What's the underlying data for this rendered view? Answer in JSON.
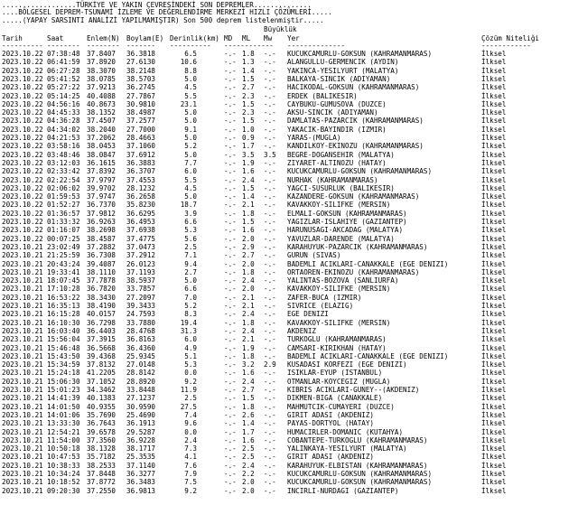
{
  "header": {
    "lines": [
      "..................TÜRKİYE VE YAKIN ÇEVRESİNDEKİ SON DEPREMLER..............",
      "....BÖLGESEL DEPREM-TSUNAMİ İZLEME VE DEĞERLENDİRME MERKEZİ HIZLI ÇÖZÜMLERİ.....",
      ".....(YAPAY SARSINTI ANALİZİ YAPILMAMIŞTIR) Son 500 deprem listelenmiştir....."
    ],
    "magnitude_label": "Büyüklük"
  },
  "table": {
    "columns": [
      "Tarih",
      "Saat",
      "Enlem(N)",
      "Boylam(E)",
      "Derinlik(km)",
      "MD",
      "ML",
      "Mw",
      "Yer",
      "Çözüm Niteliği"
    ],
    "separators": [
      "----------",
      "--------",
      "--------",
      "-------",
      "----------",
      "------------",
      "--------------",
      "------------"
    ],
    "rows": [
      [
        "2023.10.22",
        "07:38:48",
        "37.8407",
        "36.3818",
        "6.5",
        "-.-",
        "1.8",
        "-.-",
        "KUCUKCAMURLU-GOKSUN (KAHRAMANMARAS)",
        "İlksel"
      ],
      [
        "2023.10.22",
        "06:41:59",
        "37.8920",
        "27.6130",
        "10.6",
        "-.-",
        "1.3",
        "-.-",
        "ALANGULLU-GERMENCIK (AYDIN)",
        "İlksel"
      ],
      [
        "2023.10.22",
        "06:27:28",
        "38.3070",
        "38.2148",
        "8.8",
        "-.-",
        "1.4",
        "-.-",
        "YAKINCA-YESILYURT (MALATYA)",
        "İlksel"
      ],
      [
        "2023.10.22",
        "05:41:52",
        "38.0785",
        "38.5703",
        "5.0",
        "-.-",
        "1.5",
        "-.-",
        "BALKAYA-SINCIK (ADIYAMAN)",
        "İlksel"
      ],
      [
        "2023.10.22",
        "05:27:22",
        "37.9213",
        "36.2745",
        "4.5",
        "-.-",
        "2.7",
        "-.-",
        "HACIKODAL-GOKSUN (KAHRAMANMARAS)",
        "İlksel"
      ],
      [
        "2023.10.22",
        "05:14:25",
        "40.4088",
        "27.7867",
        "5.5",
        "-.-",
        "2.3",
        "-.-",
        "ERDEK (BALIKESIR)",
        "İlksel"
      ],
      [
        "2023.10.22",
        "04:56:16",
        "40.8673",
        "30.9810",
        "23.1",
        "-.-",
        "1.5",
        "-.-",
        "CAYBUKU-GUMUSOVA (DUZCE)",
        "İlksel"
      ],
      [
        "2023.10.22",
        "04:45:33",
        "38.1352",
        "38.4987",
        "5.0",
        "-.-",
        "2.3",
        "-.-",
        "AKSU-SINCIK (ADIYAMAN)",
        "İlksel"
      ],
      [
        "2023.10.22",
        "04:36:28",
        "37.4507",
        "37.2577",
        "5.0",
        "-.-",
        "1.5",
        "-.-",
        "DAMLATAS-PAZARCIK (KAHRAMANMARAS)",
        "İlksel"
      ],
      [
        "2023.10.22",
        "04:34:02",
        "38.2040",
        "27.7000",
        "9.1",
        "-.-",
        "1.0",
        "-.-",
        "YAKACIK-BAYINDIR (IZMIR)",
        "İlksel"
      ],
      [
        "2023.10.22",
        "04:21:53",
        "37.2062",
        "28.4663",
        "5.0",
        "-.-",
        "0.9",
        "-.-",
        "YARAS-(MUGLA)",
        "İlksel"
      ],
      [
        "2023.10.22",
        "03:58:16",
        "38.0453",
        "37.1060",
        "5.2",
        "-.-",
        "1.7",
        "-.-",
        "KANDILKOY-EKINOZU (KAHRAMANMARAS)",
        "İlksel"
      ],
      [
        "2023.10.22",
        "03:48:46",
        "38.0847",
        "37.6912",
        "5.0",
        "-.-",
        "3.5",
        "3.5",
        "BEGRE-DOGANSEHIR (MALATYA)",
        "İlksel"
      ],
      [
        "2023.10.22",
        "03:12:03",
        "36.1615",
        "36.3883",
        "7.7",
        "-.-",
        "1.9",
        "-.-",
        "ZIYARET-ALTINOZU (HATAY)",
        "İlksel"
      ],
      [
        "2023.10.22",
        "02:33:42",
        "37.8392",
        "36.3707",
        "6.0",
        "-.-",
        "1.6",
        "-.-",
        "KUCUKCAMURLU-GOKSUN (KAHRAMANMARAS)",
        "İlksel"
      ],
      [
        "2023.10.22",
        "02:22:54",
        "37.9797",
        "37.4553",
        "5.5",
        "-.-",
        "2.4",
        "-.-",
        "NURHAK (KAHRAMANMARAS)",
        "İlksel"
      ],
      [
        "2023.10.22",
        "02:06:02",
        "39.9702",
        "28.1232",
        "4.5",
        "-.-",
        "1.5",
        "-.-",
        "YAGCI-SUSURLUK (BALIKESIR)",
        "İlksel"
      ],
      [
        "2023.10.22",
        "01:59:53",
        "37.9747",
        "36.2658",
        "5.0",
        "-.-",
        "1.4",
        "-.-",
        "KAZANDERE-GOKSUN (KAHRAMANMARAS)",
        "İlksel"
      ],
      [
        "2023.10.22",
        "01:52:27",
        "36.7370",
        "35.8230",
        "18.7",
        "-.-",
        "2.1",
        "-.-",
        "KAVAKKOY-SILIFKE (MERSIN)",
        "İlksel"
      ],
      [
        "2023.10.22",
        "01:36:57",
        "37.9812",
        "36.6295",
        "3.9",
        "-.-",
        "1.8",
        "-.-",
        "ELMALI-GOKSUN (KAHRAMANMARAS)",
        "İlksel"
      ],
      [
        "2023.10.22",
        "01:33:32",
        "36.9263",
        "36.4953",
        "6.6",
        "-.-",
        "1.5",
        "-.-",
        "YAGIZLAR-ISLAHIYE (GAZIANTEP)",
        "İlksel"
      ],
      [
        "2023.10.22",
        "01:16:07",
        "38.2698",
        "37.6938",
        "5.3",
        "-.-",
        "1.6",
        "-.-",
        "HARUNUSAGI-AKCADAG (MALATYA)",
        "İlksel"
      ],
      [
        "2023.10.22",
        "00:07:25",
        "38.4587",
        "37.4775",
        "5.6",
        "-.-",
        "2.0",
        "-.-",
        "YAVUZLAR-DARENDE (MALATYA)",
        "İlksel"
      ],
      [
        "2023.10.21",
        "23:02:49",
        "37.2882",
        "37.0473",
        "2.5",
        "-.-",
        "2.9",
        "-.-",
        "KARAHUYUK-PAZARCIK (KAHRAMANMARAS)",
        "İlksel"
      ],
      [
        "2023.10.21",
        "21:25:59",
        "36.7308",
        "37.2912",
        "7.1",
        "-.-",
        "2.7",
        "-.-",
        "GURUN (SIVAS)",
        "İlksel"
      ],
      [
        "2023.10.21",
        "20:43:24",
        "39.4087",
        "26.0123",
        "9.4",
        "-.-",
        "2.0",
        "-.-",
        "BADEMLI ACIKLARI-CANAKKALE (EGE DENIZI)",
        "İlksel"
      ],
      [
        "2023.10.21",
        "19:33:41",
        "38.1110",
        "37.1193",
        "2.7",
        "-.-",
        "1.8",
        "-.-",
        "ORTAOREN-EKINOZU (KAHRAMANMARAS)",
        "İlksel"
      ],
      [
        "2023.10.21",
        "18:07:45",
        "37.7878",
        "38.5937",
        "5.0",
        "-.-",
        "2.4",
        "-.-",
        "YALINTAS-BOZOVA (SANLIURFA)",
        "İlksel"
      ],
      [
        "2023.10.21",
        "17:10:28",
        "36.7820",
        "33.7857",
        "6.6",
        "-.-",
        "2.0",
        "-.-",
        "KAVAKKOY-SILIFKE (MERSIN)",
        "İlksel"
      ],
      [
        "2023.10.21",
        "16:53:22",
        "38.3430",
        "27.2097",
        "7.0",
        "-.-",
        "2.1",
        "-.-",
        "ZAFER-BUCA (IZMIR)",
        "İlksel"
      ],
      [
        "2023.10.21",
        "16:35:13",
        "38.4190",
        "39.3433",
        "5.2",
        "-.-",
        "2.1",
        "-.-",
        "SIVRICE (ELAZIG)",
        "İlksel"
      ],
      [
        "2023.10.21",
        "16:15:28",
        "40.0157",
        "24.7593",
        "8.3",
        "-.-",
        "2.4",
        "-.-",
        "EGE DENIZI",
        "İlksel"
      ],
      [
        "2023.10.21",
        "16:10:30",
        "36.7298",
        "33.7880",
        "19.4",
        "-.-",
        "1.8",
        "-.-",
        "KAVAKKOY-SILIFKE (MERSIN)",
        "İlksel"
      ],
      [
        "2023.10.21",
        "16:03:40",
        "36.4403",
        "28.4768",
        "31.3",
        "-.-",
        "2.4",
        "-.-",
        "AKDENIZ",
        "İlksel"
      ],
      [
        "2023.10.21",
        "15:56:04",
        "37.3915",
        "36.8163",
        "6.0",
        "-.-",
        "2.1",
        "-.-",
        "TURKOGLU (KAHRAMANMARAS)",
        "İlksel"
      ],
      [
        "2023.10.21",
        "15:46:48",
        "36.5668",
        "36.4360",
        "4.9",
        "-.-",
        "1.9",
        "-.-",
        "CAMSARI-KIRIKHAN (HATAY)",
        "İlksel"
      ],
      [
        "2023.10.21",
        "15:43:50",
        "39.4368",
        "25.9345",
        "5.1",
        "-.-",
        "1.8",
        "-.-",
        "BADEMLI ACIKLARI-CANAKKALE (EGE DENIZI)",
        "İlksel"
      ],
      [
        "2023.10.21",
        "15:34:59",
        "37.8132",
        "27.0148",
        "5.3",
        "-.-",
        "3.2",
        "2.9",
        "KUSADASI KORFEZI (EGE DENIZI)",
        "İlksel"
      ],
      [
        "2023.10.21",
        "15:24:18",
        "41.2205",
        "28.8142",
        "0.0",
        "-.-",
        "1.6",
        "-.-",
        "ISIKLAR-EYUP (ISTANBUL)",
        "İlksel"
      ],
      [
        "2023.10.21",
        "15:06:30",
        "37.1052",
        "28.8920",
        "9.2",
        "-.-",
        "2.4",
        "-.-",
        "OTMANLAR-KOYCEGIZ (MUGLA)",
        "İlksel"
      ],
      [
        "2023.10.21",
        "15:01:23",
        "34.3462",
        "33.8448",
        "11.9",
        "-.-",
        "2.7",
        "-.-",
        "KIBRIS ACIKLARI-GUNEY--(AKDENIZ)",
        "İlksel"
      ],
      [
        "2023.10.21",
        "14:41:39",
        "40.1383",
        "27.1237",
        "2.5",
        "-.-",
        "1.5",
        "-.-",
        "DIKMEN-BIGA (CANAKKALE)",
        "İlksel"
      ],
      [
        "2023.10.21",
        "14:01:50",
        "40.9355",
        "30.9590",
        "27.5",
        "-.-",
        "1.8",
        "-.-",
        "MAHMUTCIK-CUMAYERI (DUZCE)",
        "İlksel"
      ],
      [
        "2023.10.21",
        "14:01:06",
        "35.7690",
        "25.4690",
        "7.4",
        "-.-",
        "2.6",
        "-.-",
        "GIRIT ADASI (AKDENIZ)",
        "İlksel"
      ],
      [
        "2023.10.21",
        "13:33:30",
        "36.7643",
        "36.1913",
        "9.6",
        "-.-",
        "1.4",
        "-.-",
        "PAYAS-DORTYOL (HATAY)",
        "İlksel"
      ],
      [
        "2023.10.21",
        "12:54:21",
        "39.6578",
        "29.5287",
        "0.0",
        "-.-",
        "1.7",
        "-.-",
        "HUMACIRLER-DOMANIC (KUTAHYA)",
        "İlksel"
      ],
      [
        "2023.10.21",
        "11:54:00",
        "37.3560",
        "36.9228",
        "2.4",
        "-.-",
        "1.6",
        "-.-",
        "COBANTEPE-TURKOGLU (KAHRAMANMARAS)",
        "İlksel"
      ],
      [
        "2023.10.21",
        "10:50:18",
        "38.1328",
        "38.1717",
        "7.3",
        "-.-",
        "2.5",
        "-.-",
        "YALINKAYA-YESILYURT (MALATYA)",
        "İlksel"
      ],
      [
        "2023.10.21",
        "10:47:53",
        "35.7182",
        "25.3535",
        "4.1",
        "-.-",
        "2.5",
        "-.-",
        "GIRIT ADASI (AKDENIZ)",
        "İlksel"
      ],
      [
        "2023.10.21",
        "10:38:33",
        "38.2533",
        "37.1140",
        "7.6",
        "-.-",
        "2.4",
        "-.-",
        "KARAHUYUK-ELBISTAN (KAHRAMANMARAS)",
        "İlksel"
      ],
      [
        "2023.10.21",
        "10:34:24",
        "37.8448",
        "36.3277",
        "7.9",
        "-.-",
        "2.2",
        "-.-",
        "KUCUKCAMURLU-GOKSUN (KAHRAMANMARAS)",
        "İlksel"
      ],
      [
        "2023.10.21",
        "10:18:52",
        "37.8772",
        "36.3483",
        "7.5",
        "-.-",
        "2.0",
        "-.-",
        "KUCUKCAMURLU-GOKSUN (KAHRAMANMARAS)",
        "İlksel"
      ],
      [
        "2023.10.21",
        "09:20:30",
        "37.2550",
        "36.9813",
        "9.2",
        "-.-",
        "2.0",
        "-.-",
        "INCIRLI-NURDAGI (GAZIANTEP)",
        "İlksel"
      ]
    ]
  }
}
